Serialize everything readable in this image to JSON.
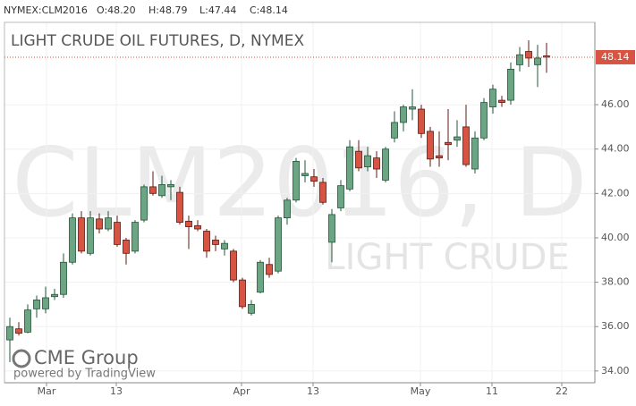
{
  "header": {
    "symbol": "NYMEX:CLM2016",
    "open": "O:48.20",
    "high": "H:48.79",
    "low": "L:47.44",
    "close": "C:48.14"
  },
  "chart_data": {
    "type": "candlestick",
    "title": "LIGHT CRUDE OIL FUTURES, D, NYMEX",
    "watermark": "CLM2016, D",
    "watermark_sub": "LIGHT CRUDE",
    "logo": "CME Group",
    "powered_by": "powered by TradingView",
    "up_color": "#6ba583",
    "down_color": "#d75442",
    "x": [
      0,
      1,
      2,
      3,
      4,
      5,
      6,
      7,
      8,
      9,
      10,
      11,
      12,
      13,
      14,
      15,
      16,
      17,
      18,
      19,
      20,
      21,
      22,
      23,
      24,
      25,
      26,
      27,
      28,
      29,
      30,
      31,
      32,
      33,
      34,
      35,
      36,
      37,
      38,
      39,
      40,
      41,
      42,
      43,
      44,
      45,
      46,
      47,
      48,
      49,
      50,
      51,
      52,
      53,
      54,
      55,
      56,
      57,
      58,
      59,
      60
    ],
    "open": [
      35.4,
      35.9,
      35.75,
      36.8,
      36.8,
      37.35,
      37.45,
      38.9,
      40.9,
      39.3,
      40.85,
      40.4,
      40.7,
      39.9,
      39.4,
      40.8,
      42.3,
      41.9,
      42.3,
      42.05,
      40.75,
      40.55,
      40.3,
      39.9,
      39.5,
      39.4,
      38.1,
      36.6,
      37.55,
      38.8,
      38.5,
      40.9,
      41.7,
      42.8,
      42.75,
      42.5,
      39.8,
      41.35,
      42.2,
      43.9,
      43.2,
      43.6,
      42.6,
      44.5,
      45.2,
      45.8,
      45.8,
      44.8,
      43.7,
      44.3,
      44.4,
      45.0,
      43.1,
      44.5,
      45.9,
      46.2,
      46.2,
      47.8,
      48.4,
      47.8,
      48.2
    ],
    "high": [
      36.4,
      36.2,
      37.0,
      37.4,
      37.8,
      37.7,
      39.3,
      41.1,
      41.2,
      41.2,
      41.1,
      41.2,
      41.0,
      40.0,
      40.8,
      42.4,
      43.0,
      42.8,
      42.6,
      42.3,
      41.0,
      40.8,
      40.4,
      40.1,
      39.9,
      39.5,
      38.2,
      37.2,
      39.0,
      39.1,
      41.0,
      41.8,
      43.6,
      43.5,
      43.1,
      42.7,
      41.3,
      42.6,
      44.4,
      44.4,
      44.1,
      43.9,
      44.1,
      45.7,
      46.0,
      46.7,
      46.0,
      45.0,
      44.8,
      45.8,
      45.3,
      46.0,
      44.8,
      46.3,
      46.9,
      46.4,
      47.9,
      48.6,
      48.9,
      48.7,
      48.79
    ],
    "low": [
      34.4,
      35.6,
      35.7,
      36.4,
      36.6,
      37.2,
      37.3,
      38.8,
      39.3,
      39.2,
      40.2,
      40.3,
      39.6,
      38.8,
      39.3,
      40.7,
      41.9,
      41.8,
      41.7,
      40.6,
      39.5,
      40.3,
      39.1,
      39.4,
      39.2,
      38.0,
      36.8,
      36.5,
      37.5,
      38.2,
      38.4,
      40.6,
      41.6,
      42.5,
      42.3,
      41.5,
      38.9,
      41.2,
      42.1,
      43.0,
      43.0,
      42.7,
      42.5,
      44.3,
      44.8,
      45.3,
      44.5,
      43.2,
      43.2,
      43.5,
      44.1,
      43.2,
      42.9,
      44.4,
      45.6,
      45.9,
      46.0,
      47.5,
      47.7,
      46.8,
      47.44
    ],
    "close": [
      36.0,
      35.7,
      36.75,
      37.2,
      37.3,
      37.45,
      38.9,
      40.9,
      39.4,
      40.9,
      40.4,
      40.9,
      39.7,
      39.3,
      40.7,
      42.3,
      42.0,
      42.4,
      42.4,
      40.7,
      40.5,
      40.4,
      39.4,
      39.7,
      39.75,
      38.1,
      36.9,
      37.0,
      38.9,
      38.35,
      40.9,
      41.7,
      43.45,
      42.9,
      42.55,
      41.6,
      41.05,
      42.35,
      44.1,
      43.15,
      43.7,
      43.1,
      44.0,
      45.2,
      45.9,
      45.9,
      44.7,
      43.55,
      43.6,
      44.2,
      44.55,
      43.3,
      44.5,
      46.1,
      46.7,
      46.1,
      47.6,
      48.25,
      48.1,
      48.1,
      48.14
    ],
    "last_price": {
      "value": 48.14,
      "label": "48.14"
    },
    "last_color": "#d75442",
    "xlim": [
      -0.6,
      65.4
    ],
    "xticks": [
      {
        "value": 4.1,
        "label": "Mar"
      },
      {
        "value": 11.9,
        "label": "13"
      },
      {
        "value": 25.9,
        "label": "Apr"
      },
      {
        "value": 33.9,
        "label": "13"
      },
      {
        "value": 45.9,
        "label": "May"
      },
      {
        "value": 53.9,
        "label": "11"
      },
      {
        "value": 61.7,
        "label": "22"
      }
    ],
    "ylim": [
      33.47,
      49.71
    ],
    "yticks": [
      {
        "value": 34,
        "label": "34.00"
      },
      {
        "value": 36,
        "label": "36.00"
      },
      {
        "value": 38,
        "label": "38.00"
      },
      {
        "value": 40,
        "label": "40.00"
      },
      {
        "value": 42,
        "label": "42.00"
      },
      {
        "value": 44,
        "label": "44.00"
      },
      {
        "value": 46,
        "label": "46.00"
      }
    ],
    "grid": true
  }
}
